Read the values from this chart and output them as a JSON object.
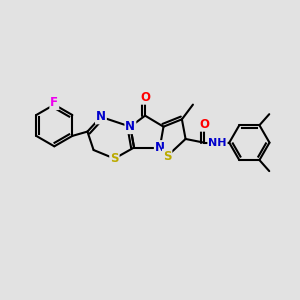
{
  "background_color": "#e2e2e2",
  "bond_color": "#000000",
  "bond_width": 1.5,
  "atom_colors": {
    "C": "#000000",
    "N": "#0000cc",
    "S": "#bbaa00",
    "O": "#ff0000",
    "F": "#ee00ee",
    "H": "#000000"
  },
  "font_size": 8.5,
  "figsize": [
    3.0,
    3.0
  ],
  "dpi": 100,
  "xlim": [
    0,
    12
  ],
  "ylim": [
    0,
    12
  ]
}
